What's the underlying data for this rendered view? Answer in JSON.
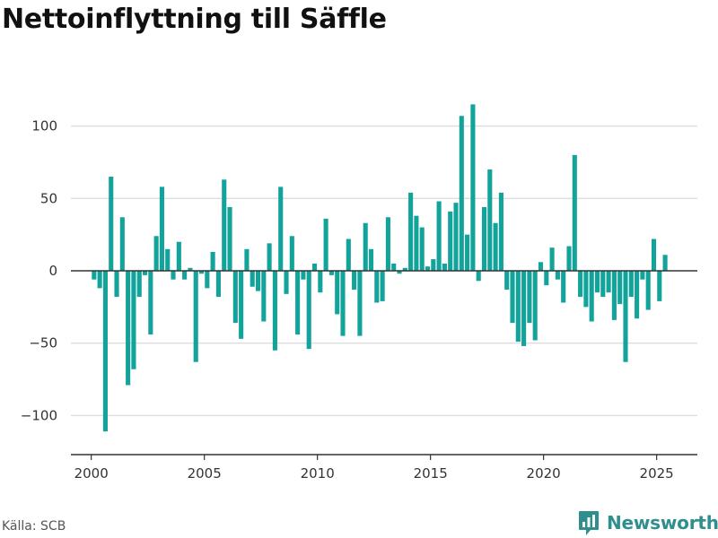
{
  "title": "Nettoinflyttning till Säffle",
  "source": "Källa: SCB",
  "brand": {
    "name": "Newsworthy",
    "color": "#2f8f8c",
    "icon": "newsworthy-logo-icon"
  },
  "colors": {
    "bar": "#12a39a",
    "grid": "#dddddd",
    "zero": "#333333",
    "axis": "#333333",
    "tick_text": "#333333"
  },
  "chart_data": {
    "type": "bar",
    "title": "Nettoinflyttning till Säffle",
    "xlabel": "",
    "ylabel": "",
    "grid": true,
    "legend": "none",
    "y_ticks": [
      -100,
      -50,
      0,
      50,
      100
    ],
    "y_tick_labels": [
      "−100",
      "−50",
      "0",
      "50",
      "100"
    ],
    "x_ticks": [
      2000,
      2005,
      2010,
      2015,
      2020,
      2025
    ],
    "x_tick_labels": [
      "2000",
      "2005",
      "2010",
      "2015",
      "2020",
      "2025"
    ],
    "xlim": [
      1999.1,
      2026.8
    ],
    "ylim": [
      -127,
      127
    ],
    "bar_width": 0.25,
    "x": [
      2000.125,
      2000.375,
      2000.625,
      2000.875,
      2001.125,
      2001.375,
      2001.625,
      2001.875,
      2002.125,
      2002.375,
      2002.625,
      2002.875,
      2003.125,
      2003.375,
      2003.625,
      2003.875,
      2004.125,
      2004.375,
      2004.625,
      2004.875,
      2005.125,
      2005.375,
      2005.625,
      2005.875,
      2006.125,
      2006.375,
      2006.625,
      2006.875,
      2007.125,
      2007.375,
      2007.625,
      2007.875,
      2008.125,
      2008.375,
      2008.625,
      2008.875,
      2009.125,
      2009.375,
      2009.625,
      2009.875,
      2010.125,
      2010.375,
      2010.625,
      2010.875,
      2011.125,
      2011.375,
      2011.625,
      2011.875,
      2012.125,
      2012.375,
      2012.625,
      2012.875,
      2013.125,
      2013.375,
      2013.625,
      2013.875,
      2014.125,
      2014.375,
      2014.625,
      2014.875,
      2015.125,
      2015.375,
      2015.625,
      2015.875,
      2016.125,
      2016.375,
      2016.625,
      2016.875,
      2017.125,
      2017.375,
      2017.625,
      2017.875,
      2018.125,
      2018.375,
      2018.625,
      2018.875,
      2019.125,
      2019.375,
      2019.625,
      2019.875,
      2020.125,
      2020.375,
      2020.625,
      2020.875,
      2021.125,
      2021.375,
      2021.625,
      2021.875,
      2022.125,
      2022.375,
      2022.625,
      2022.875,
      2023.125,
      2023.375,
      2023.625,
      2023.875,
      2024.125,
      2024.375,
      2024.625,
      2024.875,
      2025.125,
      2025.375
    ],
    "values": [
      -6,
      -12,
      -111,
      65,
      -18,
      37,
      -79,
      -68,
      -18,
      -3,
      -44,
      24,
      58,
      15,
      -6,
      20,
      -6,
      2,
      -63,
      -2,
      -12,
      13,
      -18,
      63,
      44,
      -36,
      -47,
      15,
      -11,
      -14,
      -35,
      19,
      -55,
      58,
      -16,
      24,
      -44,
      -6,
      -54,
      5,
      -15,
      36,
      -3,
      -30,
      -45,
      22,
      -13,
      -45,
      33,
      15,
      -22,
      -21,
      37,
      5,
      -2,
      2,
      54,
      38,
      30,
      3,
      8,
      48,
      5,
      41,
      47,
      107,
      25,
      115,
      -7,
      44,
      70,
      33,
      54,
      -13,
      -36,
      -49,
      -52,
      -36,
      -48,
      6,
      -10,
      16,
      -6,
      -22,
      17,
      80,
      -18,
      -25,
      -35,
      -15,
      -18,
      -15,
      -34,
      -23,
      -63,
      -18,
      -33,
      -6,
      -27,
      22,
      -21,
      11
    ]
  }
}
